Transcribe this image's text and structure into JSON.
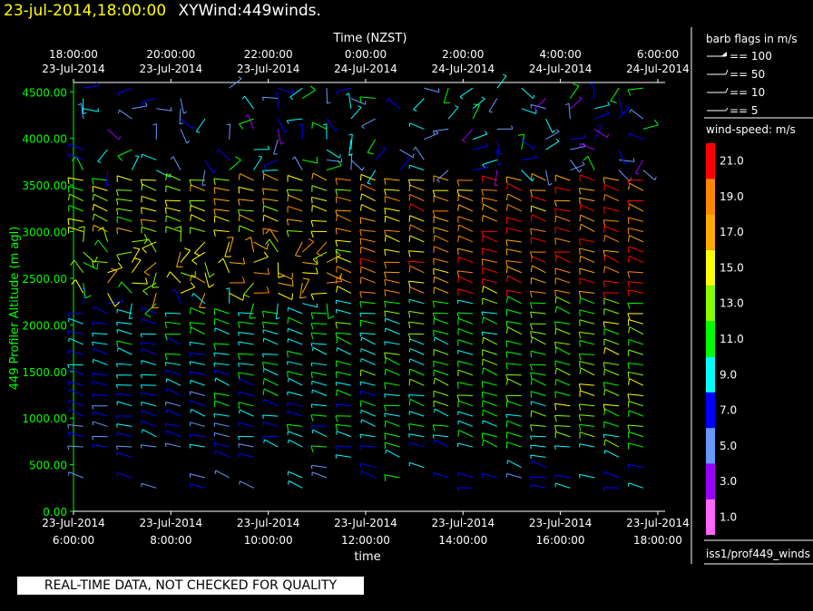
{
  "header": {
    "datetime": "23-jul-2014,18:00:00",
    "title": "XYWind:449winds."
  },
  "footer_note": "REAL-TIME DATA, NOT CHECKED FOR QUALITY",
  "colors": {
    "background": "#000000",
    "axis": "#ffffff",
    "ylabel": "#00ff00",
    "header_date": "#ffff00"
  },
  "chart_data": {
    "type": "wind-barb",
    "ylabel": "449 Profiler Altitude (m agl)",
    "top_axis_title": "Time (NZST)",
    "bottom_axis_title": "time",
    "ylim": [
      0,
      4600
    ],
    "xlim_hours": [
      6,
      18.15
    ],
    "y_ticks": [
      "0.00",
      "500.00",
      "1000.00",
      "1500.00",
      "2000.00",
      "2500.00",
      "3000.00",
      "3500.00",
      "4000.00",
      "4500.00"
    ],
    "y_tick_values": [
      0,
      500,
      1000,
      1500,
      2000,
      2500,
      3000,
      3500,
      4000,
      4500
    ],
    "bottom_ticks": [
      {
        "hour": 6,
        "date": "23-Jul-2014",
        "time": "6:00:00"
      },
      {
        "hour": 8,
        "date": "23-Jul-2014",
        "time": "8:00:00"
      },
      {
        "hour": 10,
        "date": "23-Jul-2014",
        "time": "10:00:00"
      },
      {
        "hour": 12,
        "date": "23-Jul-2014",
        "time": "12:00:00"
      },
      {
        "hour": 14,
        "date": "23-Jul-2014",
        "time": "14:00:00"
      },
      {
        "hour": 16,
        "date": "23-Jul-2014",
        "time": "16:00:00"
      },
      {
        "hour": 18,
        "date": "23-Jul-2014",
        "time": "18:00:00"
      }
    ],
    "top_ticks": [
      {
        "hour": 6,
        "time": "18:00:00",
        "date": "23-Jul-2014"
      },
      {
        "hour": 8,
        "time": "20:00:00",
        "date": "23-Jul-2014"
      },
      {
        "hour": 10,
        "time": "22:00:00",
        "date": "23-Jul-2014"
      },
      {
        "hour": 12,
        "time": "0:00:00",
        "date": "24-Jul-2014"
      },
      {
        "hour": 14,
        "time": "2:00:00",
        "date": "24-Jul-2014"
      },
      {
        "hour": 16,
        "time": "4:00:00",
        "date": "24-Jul-2014"
      },
      {
        "hour": 18,
        "time": "6:00:00",
        "date": "24-Jul-2014"
      }
    ],
    "barb_legend": {
      "title": "barb flags in m/s",
      "items": [
        "== 100",
        "== 50",
        "== 10",
        "== 5"
      ]
    },
    "speed_legend": {
      "title": "wind-speed: m/s",
      "bins": [
        {
          "label": "21.0",
          "color": "#ff0000"
        },
        {
          "label": "19.0",
          "color": "#ff8800"
        },
        {
          "label": "17.0",
          "color": "#ffaa00"
        },
        {
          "label": "15.0",
          "color": "#ffff00"
        },
        {
          "label": "13.0",
          "color": "#88ff00"
        },
        {
          "label": "11.0",
          "color": "#00ff00"
        },
        {
          "label": "9.0",
          "color": "#00ffff"
        },
        {
          "label": "7.0",
          "color": "#0000ff"
        },
        {
          "label": "5.0",
          "color": "#6699ff"
        },
        {
          "label": "3.0",
          "color": "#9900ff"
        },
        {
          "label": "1.0",
          "color": "#ff66ff"
        }
      ]
    },
    "dataset_label": "iss1/prof449_winds",
    "series": [
      {
        "name": "wind barbs",
        "time_start_hour": 6.2,
        "time_step_hour": 0.5,
        "time_count": 24,
        "altitude_start": 250,
        "altitude_step": 110,
        "altitude_count": 40
      }
    ]
  }
}
